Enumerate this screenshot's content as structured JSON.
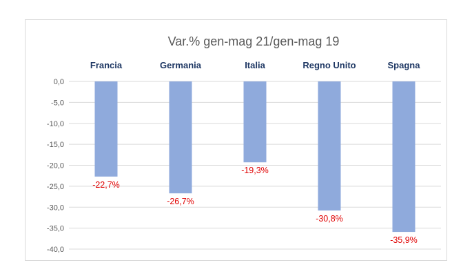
{
  "chart_data": {
    "type": "bar",
    "title": "Var.% gen-mag 21/gen-mag 19",
    "categories": [
      "Francia",
      "Germania",
      "Italia",
      "Regno Unito",
      "Spagna"
    ],
    "values": [
      -22.7,
      -26.7,
      -19.3,
      -30.8,
      -35.9
    ],
    "data_labels": [
      "-22,7%",
      "-26,7%",
      "-19,3%",
      "-30,8%",
      "-35,9%"
    ],
    "yticks": [
      0,
      -5,
      -10,
      -15,
      -20,
      -25,
      -30,
      -35,
      -40
    ],
    "ytick_labels": [
      "0,0",
      "-5,0",
      "-10,0",
      "-15,0",
      "-20,0",
      "-25,0",
      "-30,0",
      "-35,0",
      "-40,0"
    ],
    "ylim": [
      -40,
      0
    ],
    "xlabel": "",
    "ylabel": "",
    "grid": true,
    "category_labels_position": "top",
    "colors": {
      "bar": "#8faadc",
      "data_label": "#e00000",
      "category_label": "#1f3864",
      "grid": "#d9d9d9"
    }
  }
}
